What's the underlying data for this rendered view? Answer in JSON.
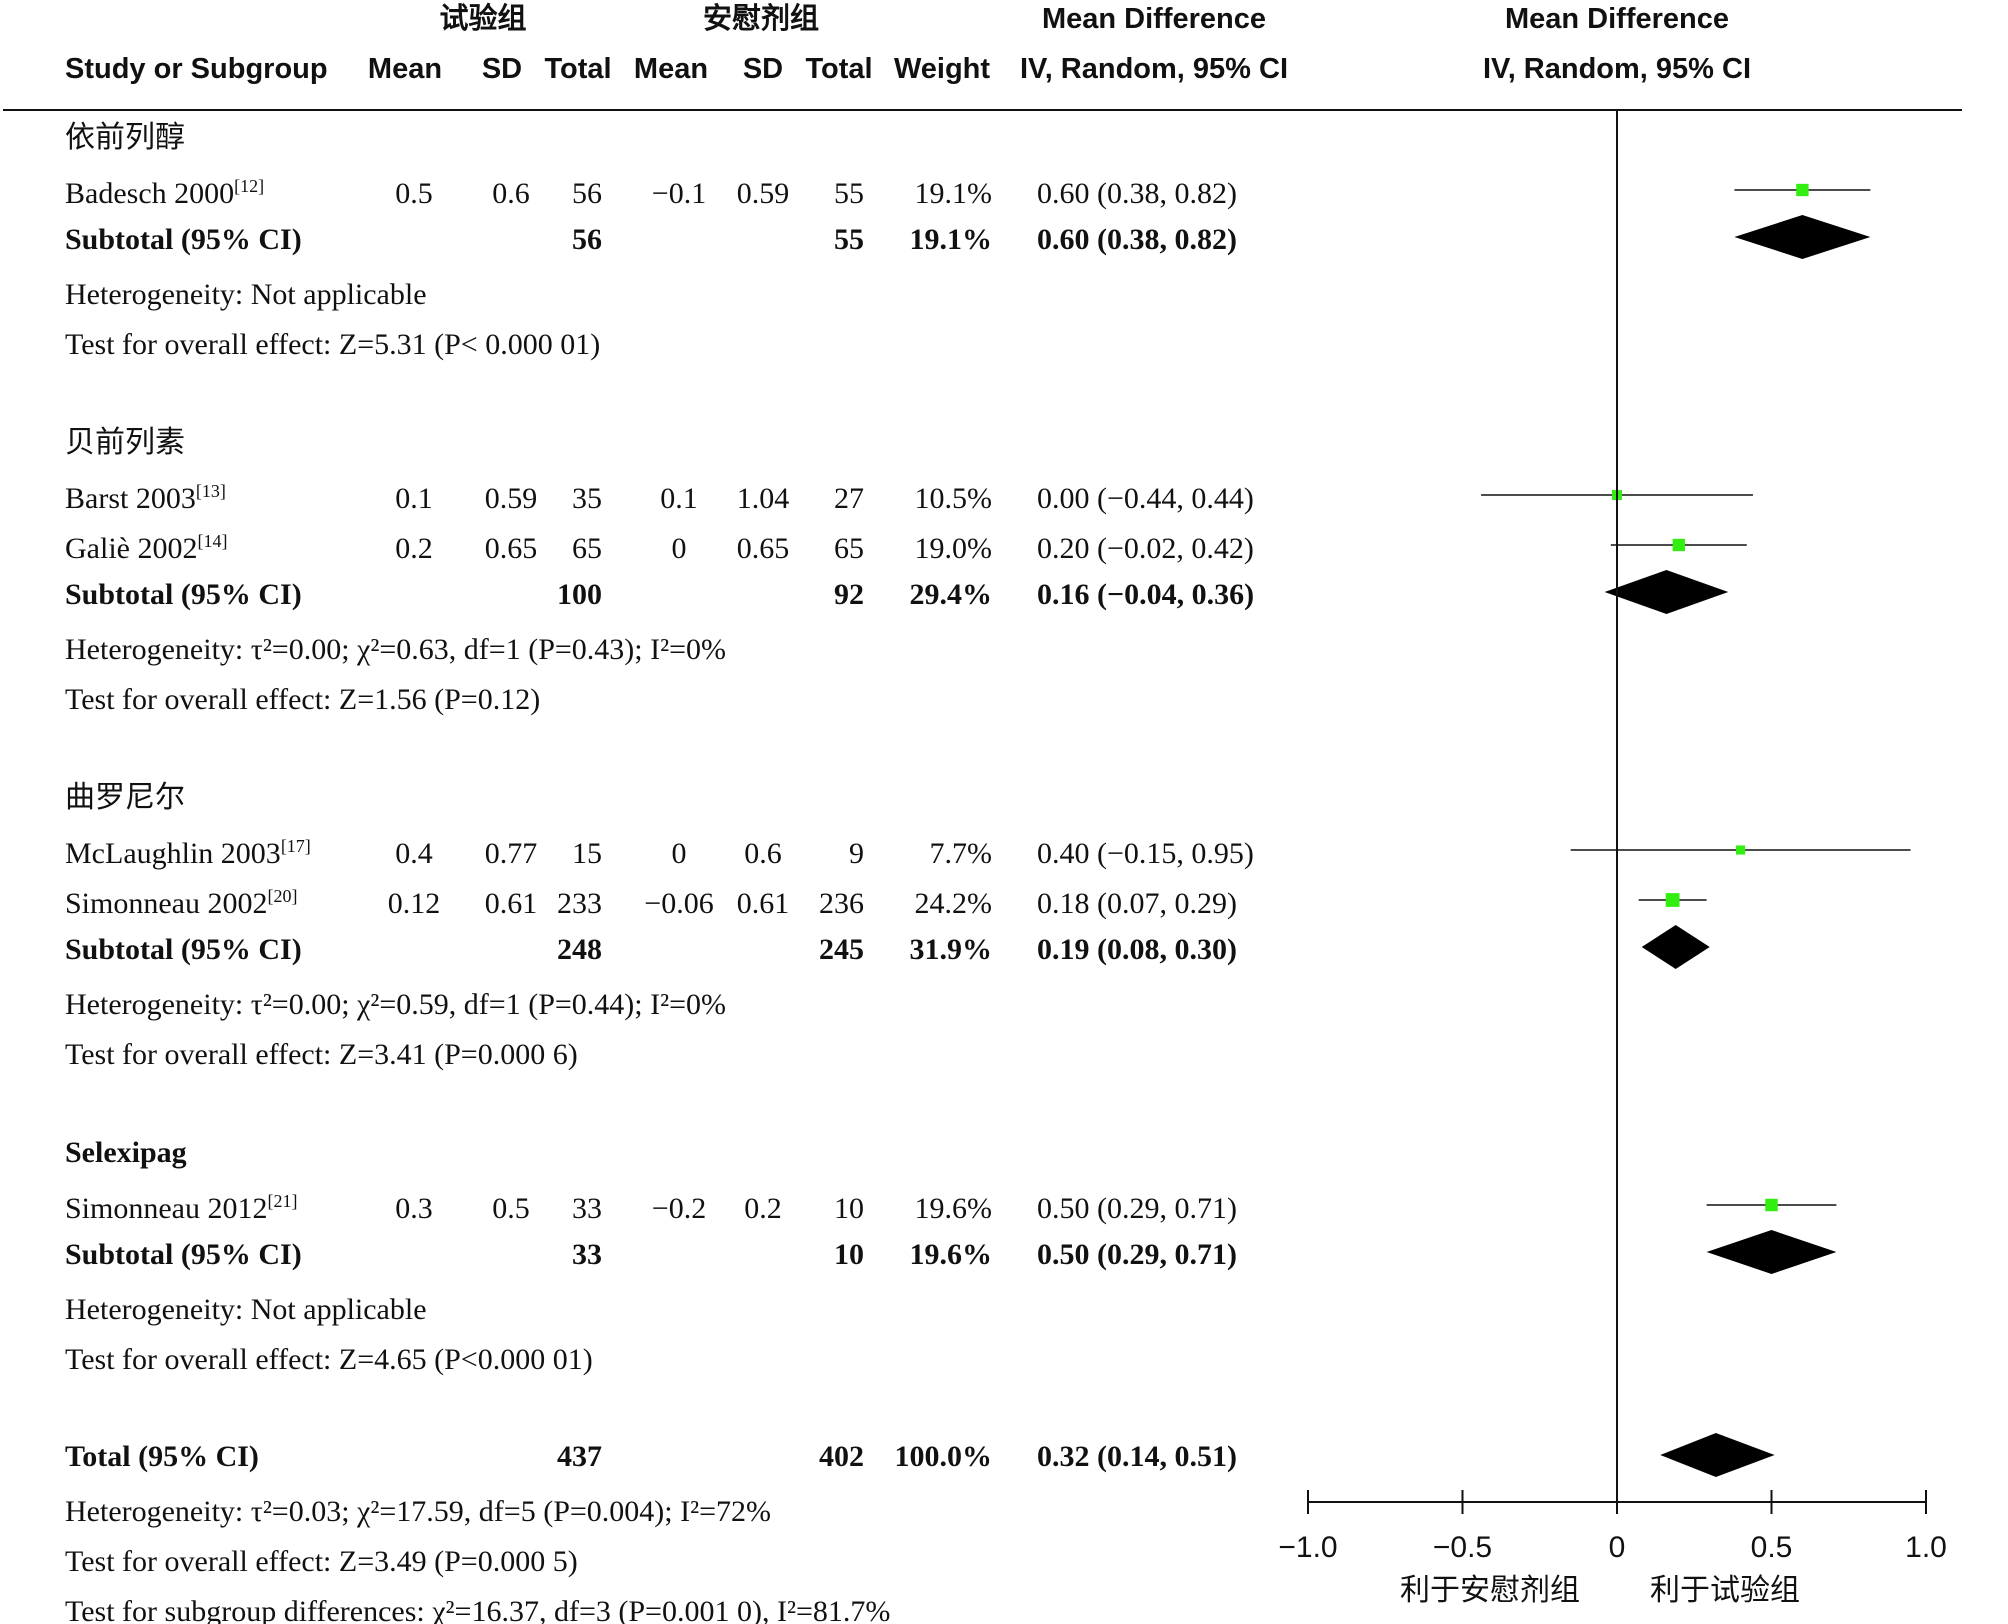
{
  "headers": {
    "group_exp": "试验组",
    "group_ctrl": "安慰剂组",
    "md_top": "Mean Difference",
    "md_sub": "IV, Random, 95% CI",
    "plot_top": "Mean Difference",
    "plot_sub": "IV, Random, 95% CI",
    "study": "Study or Subgroup",
    "mean": "Mean",
    "sd": "SD",
    "total": "Total",
    "weight": "Weight"
  },
  "chart_data": {
    "type": "forest",
    "xlim": [
      -1.0,
      1.0
    ],
    "ticks": [
      "−1.0",
      "−0.5",
      "0",
      "0.5",
      "1.0"
    ],
    "tick_values": [
      -1.0,
      -0.5,
      0,
      0.5,
      1.0
    ],
    "favours_left": "利于安慰剂组",
    "favours_right": "利于试验组",
    "marker_color": "#33ee11",
    "groups": [
      {
        "name": "依前列醇",
        "name_bold": false,
        "studies": [
          {
            "study": "Badesch 2000",
            "ref": "[12]",
            "e_mean": "0.5",
            "e_sd": "0.6",
            "e_total": "56",
            "c_mean": "−0.1",
            "c_sd": "0.59",
            "c_total": "55",
            "weight": "19.1%",
            "ci_text": "0.60 (0.38, 0.82)",
            "md": 0.6,
            "lo": 0.38,
            "hi": 0.82
          }
        ],
        "subtotal": {
          "label": "Subtotal (95% CI)",
          "e_total": "56",
          "c_total": "55",
          "weight": "19.1%",
          "ci_text": "0.60 (0.38, 0.82)",
          "md": 0.6,
          "lo": 0.38,
          "hi": 0.82
        },
        "het": "Heterogeneity: Not applicable",
        "test": "Test for overall effect: Z=5.31 (P< 0.000 01)"
      },
      {
        "name": "贝前列素",
        "name_bold": false,
        "studies": [
          {
            "study": "Barst 2003",
            "ref": "[13]",
            "e_mean": "0.1",
            "e_sd": "0.59",
            "e_total": "35",
            "c_mean": "0.1",
            "c_sd": "1.04",
            "c_total": "27",
            "weight": "10.5%",
            "ci_text": "0.00 (−0.44, 0.44)",
            "md": 0.0,
            "lo": -0.44,
            "hi": 0.44
          },
          {
            "study": "Galiè 2002",
            "ref": "[14]",
            "e_mean": "0.2",
            "e_sd": "0.65",
            "e_total": "65",
            "c_mean": "0",
            "c_sd": "0.65",
            "c_total": "65",
            "weight": "19.0%",
            "ci_text": "0.20 (−0.02, 0.42)",
            "md": 0.2,
            "lo": -0.02,
            "hi": 0.42
          }
        ],
        "subtotal": {
          "label": "Subtotal (95% CI)",
          "e_total": "100",
          "c_total": "92",
          "weight": "29.4%",
          "ci_text": "0.16 (−0.04, 0.36)",
          "md": 0.16,
          "lo": -0.04,
          "hi": 0.36
        },
        "het": "Heterogeneity: τ²=0.00; χ²=0.63, df=1 (P=0.43); I²=0%",
        "test": "Test for overall effect: Z=1.56 (P=0.12)"
      },
      {
        "name": "曲罗尼尔",
        "name_bold": false,
        "studies": [
          {
            "study": "McLaughlin 2003",
            "ref": "[17]",
            "e_mean": "0.4",
            "e_sd": "0.77",
            "e_total": "15",
            "c_mean": "0",
            "c_sd": "0.6",
            "c_total": "9",
            "weight": "7.7%",
            "ci_text": "0.40 (−0.15, 0.95)",
            "md": 0.4,
            "lo": -0.15,
            "hi": 0.95
          },
          {
            "study": "Simonneau 2002",
            "ref": "[20]",
            "e_mean": "0.12",
            "e_sd": "0.61",
            "e_total": "233",
            "c_mean": "−0.06",
            "c_sd": "0.61",
            "c_total": "236",
            "weight": "24.2%",
            "ci_text": "0.18 (0.07, 0.29)",
            "md": 0.18,
            "lo": 0.07,
            "hi": 0.29
          }
        ],
        "subtotal": {
          "label": "Subtotal (95% CI)",
          "e_total": "248",
          "c_total": "245",
          "weight": "31.9%",
          "ci_text": "0.19 (0.08, 0.30)",
          "md": 0.19,
          "lo": 0.08,
          "hi": 0.3
        },
        "het": "Heterogeneity: τ²=0.00; χ²=0.59, df=1 (P=0.44); I²=0%",
        "test": "Test for overall effect: Z=3.41 (P=0.000 6)"
      },
      {
        "name": "Selexipag",
        "name_bold": true,
        "studies": [
          {
            "study": "Simonneau 2012",
            "ref": "[21]",
            "e_mean": "0.3",
            "e_sd": "0.5",
            "e_total": "33",
            "c_mean": "−0.2",
            "c_sd": "0.2",
            "c_total": "10",
            "weight": "19.6%",
            "ci_text": "0.50 (0.29, 0.71)",
            "md": 0.5,
            "lo": 0.29,
            "hi": 0.71
          }
        ],
        "subtotal": {
          "label": "Subtotal (95% CI)",
          "e_total": "33",
          "c_total": "10",
          "weight": "19.6%",
          "ci_text": "0.50 (0.29, 0.71)",
          "md": 0.5,
          "lo": 0.29,
          "hi": 0.71
        },
        "het": "Heterogeneity: Not applicable",
        "test": "Test for overall effect: Z=4.65 (P<0.000 01)"
      }
    ],
    "total": {
      "label": "Total (95% CI)",
      "e_total": "437",
      "c_total": "402",
      "weight": "100.0%",
      "ci_text": "0.32 (0.14, 0.51)",
      "md": 0.32,
      "lo": 0.14,
      "hi": 0.51,
      "het": "Heterogeneity: τ²=0.03; χ²=17.59, df=5 (P=0.004); I²=72%",
      "test": "Test for overall effect: Z=3.49 (P=0.000 5)",
      "subgroup": "Test for subgroup differences: χ²=16.37, df=3 (P=0.001 0), I²=81.7%"
    }
  }
}
